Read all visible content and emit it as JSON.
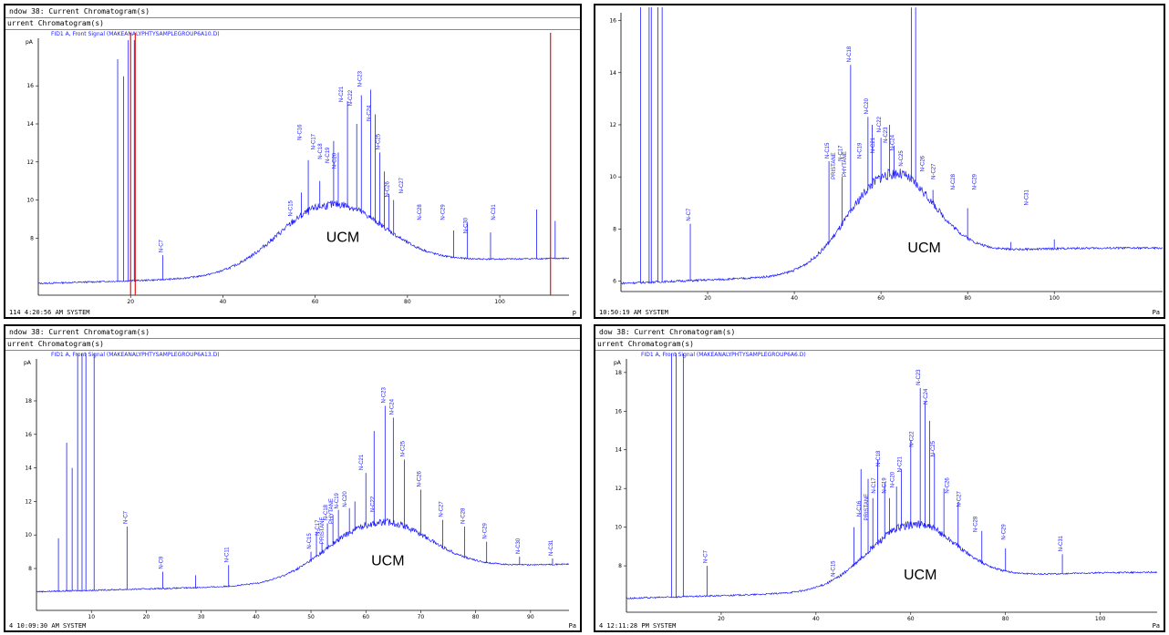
{
  "colors": {
    "signal": "#1a1aff",
    "marker": "#e00000",
    "axis": "#000000"
  },
  "chart_data": [
    {
      "id": "p1",
      "type": "line",
      "window_title": "ndow 38: Current Chromatogram(s)",
      "sub_title": "urrent Chromatogram(s)",
      "signal_label": "FID1 A, Front Signal (MAKEANALYPHTYSAMPLEGROUP6A10.D)",
      "footer": "114 4:20:56 AM SYSTEM",
      "footer_right": "p",
      "y_unit": "pA",
      "ylim": [
        5,
        18.5
      ],
      "xlim": [
        0,
        115
      ],
      "yticks": [
        8,
        10,
        12,
        14,
        16
      ],
      "xticks": [
        {
          "v": 20,
          "l": "20"
        },
        {
          "v": 40,
          "l": "40"
        },
        {
          "v": 60,
          "l": "60"
        },
        {
          "v": 80,
          "l": "80"
        },
        {
          "v": 100,
          "l": "100"
        }
      ],
      "baseline": 5.6,
      "hump_center": 63,
      "hump_height": 3.6,
      "hump_width": 11,
      "tail": 1.5,
      "spikes": [
        [
          17.2,
          17.4
        ],
        [
          18.5,
          16.5
        ],
        [
          19.5,
          18.4
        ],
        [
          20.8,
          18.4
        ],
        [
          27,
          7.1
        ],
        [
          55,
          9
        ],
        [
          57,
          10.4
        ],
        [
          58.5,
          12.1
        ],
        [
          61,
          11
        ],
        [
          64,
          13.1
        ],
        [
          65,
          12.5
        ],
        [
          67,
          15.2
        ],
        [
          69,
          14
        ],
        [
          70,
          15.5
        ],
        [
          72,
          15.8
        ],
        [
          73,
          14.5
        ],
        [
          74,
          12.5
        ],
        [
          75,
          11.5
        ],
        [
          76,
          10.3
        ],
        [
          77,
          10
        ],
        [
          90,
          8.4
        ],
        [
          93,
          8.8
        ],
        [
          98,
          8.3
        ],
        [
          108,
          9.5
        ],
        [
          112,
          8.9
        ]
      ],
      "peaks": [
        {
          "x": 27,
          "y": 7.1,
          "t": "N-C7"
        },
        {
          "x": 55,
          "y": 9,
          "t": "N-C15"
        },
        {
          "x": 57,
          "y": 13,
          "t": "N-C16"
        },
        {
          "x": 60,
          "y": 12.5,
          "t": "N-C17"
        },
        {
          "x": 61.5,
          "y": 12,
          "t": "N-C18"
        },
        {
          "x": 63,
          "y": 11.8,
          "t": "N-C19"
        },
        {
          "x": 64.5,
          "y": 11.5,
          "t": "N-C20"
        },
        {
          "x": 66,
          "y": 15,
          "t": "N-C21"
        },
        {
          "x": 68,
          "y": 14.8,
          "t": "N-C22"
        },
        {
          "x": 70,
          "y": 15.8,
          "t": "N-C23"
        },
        {
          "x": 72,
          "y": 14,
          "t": "N-C24"
        },
        {
          "x": 74,
          "y": 12.5,
          "t": "N-C25"
        },
        {
          "x": 76,
          "y": 10,
          "t": "N-C26"
        },
        {
          "x": 79,
          "y": 10.2,
          "t": "N-C27"
        },
        {
          "x": 83,
          "y": 8.8,
          "t": "N-C28"
        },
        {
          "x": 88,
          "y": 8.8,
          "t": "N-C29"
        },
        {
          "x": 93,
          "y": 8.1,
          "t": "N-C30"
        },
        {
          "x": 99,
          "y": 8.8,
          "t": "N-C31"
        }
      ],
      "markers_x": [
        20,
        21,
        111
      ],
      "ucm_label": "UCM",
      "ucm_pos": [
        66,
        7.8
      ]
    },
    {
      "id": "p2",
      "type": "line",
      "window_title": "",
      "sub_title": "",
      "signal_label": "",
      "footer": "10:50:19 AM SYSTEM",
      "footer_right": "Pa",
      "y_unit": "",
      "ylim": [
        5.6,
        16.3
      ],
      "xlim": [
        0,
        125
      ],
      "yticks": [
        6,
        8,
        10,
        12,
        14,
        16
      ],
      "xticks": [
        {
          "v": 20,
          "l": "20"
        },
        {
          "v": 40,
          "l": "40"
        },
        {
          "v": 60,
          "l": "60"
        },
        {
          "v": 80,
          "l": "80"
        },
        {
          "v": 100,
          "l": "100"
        }
      ],
      "baseline": 5.9,
      "hump_center": 62,
      "hump_height": 3.7,
      "hump_width": 9.5,
      "tail": 1.8,
      "spikes": [
        [
          4.5,
          17
        ],
        [
          6.5,
          16.6
        ],
        [
          7,
          16.6
        ],
        [
          8.5,
          16.6
        ],
        [
          9.5,
          16.6
        ],
        [
          16,
          8.2
        ],
        [
          48,
          10.6
        ],
        [
          51,
          10
        ],
        [
          53,
          14.3
        ],
        [
          57,
          12.3
        ],
        [
          58,
          12
        ],
        [
          60,
          11.5
        ],
        [
          62,
          12
        ],
        [
          63,
          11.2
        ],
        [
          67,
          16.5
        ],
        [
          68,
          16.5
        ],
        [
          72,
          9.5
        ],
        [
          80,
          8.8
        ],
        [
          90,
          7.5
        ],
        [
          100,
          7.6
        ]
      ],
      "peaks": [
        {
          "x": 16,
          "y": 8.2,
          "t": "N-C7"
        },
        {
          "x": 48,
          "y": 10.6,
          "t": "N-C15"
        },
        {
          "x": 49.5,
          "y": 9.8,
          "t": "PRISTANE"
        },
        {
          "x": 51,
          "y": 10.5,
          "t": "N-C17"
        },
        {
          "x": 52,
          "y": 9.9,
          "t": "PHYTANE"
        },
        {
          "x": 53,
          "y": 14.3,
          "t": "N-C18"
        },
        {
          "x": 55.5,
          "y": 10.6,
          "t": "N-C19"
        },
        {
          "x": 57,
          "y": 12.3,
          "t": "N-C20"
        },
        {
          "x": 58.5,
          "y": 10.8,
          "t": "N-C21"
        },
        {
          "x": 60,
          "y": 11.6,
          "t": "N-C22"
        },
        {
          "x": 61.5,
          "y": 11.2,
          "t": "N-C23"
        },
        {
          "x": 63,
          "y": 10.9,
          "t": "N-C24"
        },
        {
          "x": 65,
          "y": 10.3,
          "t": "N-C25"
        },
        {
          "x": 70,
          "y": 10.1,
          "t": "N-C26"
        },
        {
          "x": 72.5,
          "y": 9.8,
          "t": "N-C27"
        },
        {
          "x": 77,
          "y": 9.4,
          "t": "N-C28"
        },
        {
          "x": 82,
          "y": 9.4,
          "t": "N-C29"
        },
        {
          "x": 94,
          "y": 8.8,
          "t": "N-C31"
        }
      ],
      "markers_x": [],
      "ucm_label": "UCM",
      "ucm_pos": [
        70,
        7.1
      ]
    },
    {
      "id": "p3",
      "type": "line",
      "window_title": "ndow 38: Current Chromatogram(s)",
      "sub_title": "urrent Chromatogram(s)",
      "signal_label": "FID1 A, Front Signal (MAKEANALYPHTYSAMPLEGROUP6A13.D)",
      "footer": "4 10:09:30 AM SYSTEM",
      "footer_right": "Pa",
      "y_unit": "pA",
      "ylim": [
        5.5,
        20.5
      ],
      "xlim": [
        0,
        97
      ],
      "yticks": [
        8,
        10,
        12,
        14,
        16,
        18
      ],
      "xticks": [
        {
          "v": 10,
          "l": "10"
        },
        {
          "v": 20,
          "l": "20"
        },
        {
          "v": 30,
          "l": "30"
        },
        {
          "v": 40,
          "l": "40"
        },
        {
          "v": 50,
          "l": "50"
        },
        {
          "v": 60,
          "l": "60"
        },
        {
          "v": 70,
          "l": "70"
        },
        {
          "v": 80,
          "l": "80"
        },
        {
          "v": 90,
          "l": "90"
        }
      ],
      "baseline": 6.6,
      "hump_center": 62,
      "hump_height": 3.5,
      "hump_width": 9,
      "tail": 2.2,
      "spikes": [
        [
          4,
          9.8
        ],
        [
          5.5,
          15.5
        ],
        [
          6.5,
          14
        ],
        [
          7.5,
          21
        ],
        [
          8.3,
          21
        ],
        [
          9,
          21
        ],
        [
          10.5,
          21
        ],
        [
          16.5,
          10.5
        ],
        [
          23,
          7.8
        ],
        [
          29,
          7.6
        ],
        [
          35,
          8.2
        ],
        [
          50,
          9
        ],
        [
          51,
          10.2
        ],
        [
          52,
          9.5
        ],
        [
          53,
          10.7
        ],
        [
          54,
          11.2
        ],
        [
          55,
          11.5
        ],
        [
          57,
          11.6
        ],
        [
          58,
          12
        ],
        [
          60,
          13.7
        ],
        [
          61.5,
          16.2
        ],
        [
          63.5,
          17.7
        ],
        [
          65,
          17
        ],
        [
          67,
          14.5
        ],
        [
          70,
          12.7
        ],
        [
          74,
          10.9
        ],
        [
          78,
          10.5
        ],
        [
          82,
          9.6
        ],
        [
          88,
          8.7
        ],
        [
          94,
          8.6
        ]
      ],
      "peaks": [
        {
          "x": 16.5,
          "y": 10.5,
          "t": "N-C7"
        },
        {
          "x": 23,
          "y": 7.8,
          "t": "N-C9"
        },
        {
          "x": 35,
          "y": 8.2,
          "t": "N-C11"
        },
        {
          "x": 50,
          "y": 9,
          "t": "N-C15"
        },
        {
          "x": 51.5,
          "y": 9.8,
          "t": "N-C17"
        },
        {
          "x": 52.3,
          "y": 9.3,
          "t": "PRISTANE"
        },
        {
          "x": 53,
          "y": 10.7,
          "t": "N-C18"
        },
        {
          "x": 54,
          "y": 10.5,
          "t": "PHYTANE"
        },
        {
          "x": 55,
          "y": 11.4,
          "t": "N-C19"
        },
        {
          "x": 56.5,
          "y": 11.5,
          "t": "N-C20"
        },
        {
          "x": 59.5,
          "y": 13.7,
          "t": "N-C21"
        },
        {
          "x": 61.5,
          "y": 11.2,
          "t": "N-C22"
        },
        {
          "x": 63.5,
          "y": 17.7,
          "t": "N-C23"
        },
        {
          "x": 65,
          "y": 17,
          "t": "N-C24"
        },
        {
          "x": 67,
          "y": 14.5,
          "t": "N-C25"
        },
        {
          "x": 70,
          "y": 12.7,
          "t": "N-C26"
        },
        {
          "x": 74,
          "y": 10.9,
          "t": "N-C27"
        },
        {
          "x": 78,
          "y": 10.5,
          "t": "N-C28"
        },
        {
          "x": 82,
          "y": 9.6,
          "t": "N-C29"
        },
        {
          "x": 88,
          "y": 8.7,
          "t": "N-C30"
        },
        {
          "x": 94,
          "y": 8.6,
          "t": "N-C31"
        }
      ],
      "markers_x": [],
      "ucm_label": "UCM",
      "ucm_pos": [
        64,
        8.2
      ]
    },
    {
      "id": "p4",
      "type": "line",
      "window_title": "dow 38: Current Chromatogram(s)",
      "sub_title": "urrent Chromatogram(s)",
      "signal_label": "FID1 A, Front Signal (MAKEANALYPHTYSAMPLEGROUP6A6.D)",
      "footer": "4 12:11:28 PM SYSTEM",
      "footer_right": "Pa",
      "y_unit": "pA",
      "ylim": [
        5.6,
        18.7
      ],
      "xlim": [
        0,
        112
      ],
      "yticks": [
        8,
        10,
        12,
        14,
        16,
        18
      ],
      "xticks": [
        {
          "v": 20,
          "l": "20"
        },
        {
          "v": 40,
          "l": "40"
        },
        {
          "v": 60,
          "l": "60"
        },
        {
          "v": 80,
          "l": "80"
        },
        {
          "v": 100,
          "l": "100"
        }
      ],
      "baseline": 6.3,
      "hump_center": 60,
      "hump_height": 3.3,
      "hump_width": 9,
      "tail": 1.6,
      "spikes": [
        [
          9.5,
          19
        ],
        [
          10.5,
          19
        ],
        [
          12,
          19
        ],
        [
          17,
          8
        ],
        [
          48,
          10
        ],
        [
          49.5,
          13
        ],
        [
          51,
          12.5
        ],
        [
          52,
          11.5
        ],
        [
          53,
          13.5
        ],
        [
          54.5,
          12.3
        ],
        [
          55.5,
          11.5
        ],
        [
          57,
          12.1
        ],
        [
          58,
          13
        ],
        [
          60,
          14.5
        ],
        [
          62,
          17.2
        ],
        [
          63,
          16.5
        ],
        [
          64,
          15.5
        ],
        [
          65,
          13.8
        ],
        [
          67,
          12
        ],
        [
          70,
          11.3
        ],
        [
          75,
          9.8
        ],
        [
          80,
          8.9
        ],
        [
          92,
          8.6
        ]
      ],
      "peaks": [
        {
          "x": 17,
          "y": 8,
          "t": "N-C7"
        },
        {
          "x": 44,
          "y": 7.3,
          "t": "N-C15"
        },
        {
          "x": 49.5,
          "y": 10.4,
          "t": "N-C16"
        },
        {
          "x": 51,
          "y": 10.2,
          "t": "PRISTANE"
        },
        {
          "x": 52.5,
          "y": 11.6,
          "t": "N-C17"
        },
        {
          "x": 53.5,
          "y": 13,
          "t": "N-C18"
        },
        {
          "x": 54.8,
          "y": 11.6,
          "t": "N-C19"
        },
        {
          "x": 56.5,
          "y": 11.9,
          "t": "N-C20"
        },
        {
          "x": 58,
          "y": 12.7,
          "t": "N-C21"
        },
        {
          "x": 60.5,
          "y": 14,
          "t": "N-C22"
        },
        {
          "x": 62,
          "y": 17.2,
          "t": "N-C23"
        },
        {
          "x": 63.5,
          "y": 16.2,
          "t": "N-C24"
        },
        {
          "x": 65,
          "y": 13.5,
          "t": "N-C25"
        },
        {
          "x": 68,
          "y": 11.6,
          "t": "N-C26"
        },
        {
          "x": 70.5,
          "y": 10.9,
          "t": "N-C27"
        },
        {
          "x": 74,
          "y": 9.6,
          "t": "N-C28"
        },
        {
          "x": 80,
          "y": 9.2,
          "t": "N-C29"
        },
        {
          "x": 92,
          "y": 8.6,
          "t": "N-C31"
        }
      ],
      "markers_x": [],
      "ucm_label": "UCM",
      "ucm_pos": [
        62,
        7.3
      ]
    }
  ]
}
